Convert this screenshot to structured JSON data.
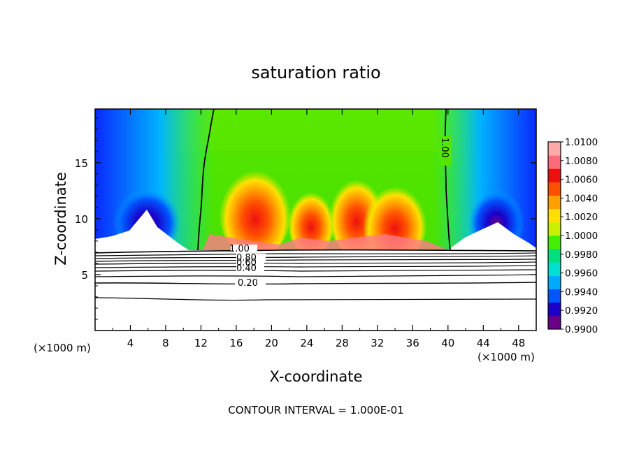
{
  "chart_data": {
    "type": "heatmap",
    "title": "saturation ratio",
    "xlabel": "X-coordinate",
    "ylabel": "Z-coordinate",
    "x_unit_label": "(×1000 m)",
    "xlim": [
      0,
      50
    ],
    "ylim": [
      0,
      19.8
    ],
    "x_ticks": [
      4,
      8,
      12,
      16,
      20,
      24,
      28,
      32,
      36,
      40,
      44,
      48
    ],
    "y_ticks": [
      5,
      10,
      15
    ],
    "colorbar": {
      "min": 0.99,
      "max": 1.01,
      "tick_labels": [
        "1.0100",
        "1.0080",
        "1.0060",
        "1.0040",
        "1.0020",
        "1.0000",
        "0.9980",
        "0.9960",
        "0.9940",
        "0.9920",
        "0.9900"
      ],
      "colors": [
        "#6a008a",
        "#1a00c8",
        "#0055ff",
        "#00aaff",
        "#00e0d0",
        "#00e080",
        "#44ee00",
        "#c8f000",
        "#ffe000",
        "#ffa000",
        "#ff5000",
        "#ee1010",
        "#ff6a7a",
        "#ffaaaa"
      ]
    },
    "contour_labels": [
      "1.00",
      "0.80",
      "0.60",
      "0.40",
      "0.20",
      "1.00"
    ],
    "contour_interval_text": "CONTOUR INTERVAL = 1.000E-01",
    "contour_levels_below_cloud": [
      1.0,
      0.9,
      0.8,
      0.7,
      0.6,
      0.5,
      0.4,
      0.3,
      0.2,
      0.1
    ],
    "unsaturated_region": {
      "top_z": 7.3,
      "x_range": [
        0,
        50
      ]
    },
    "saturation_1_isolines_x": [
      12.5,
      39.8
    ],
    "supersaturated_cores": [
      {
        "x": 18,
        "z": 10.5,
        "value": 1.007
      },
      {
        "x": 24,
        "z": 9.5,
        "value": 1.006
      },
      {
        "x": 28,
        "z": 10.0,
        "value": 1.005
      },
      {
        "x": 33,
        "z": 9.8,
        "value": 1.008
      }
    ],
    "subsaturated_cores": [
      {
        "x": 6,
        "z": 9.5,
        "value": 0.9915
      },
      {
        "x": 45,
        "z": 9.5,
        "value": 0.992
      }
    ]
  }
}
